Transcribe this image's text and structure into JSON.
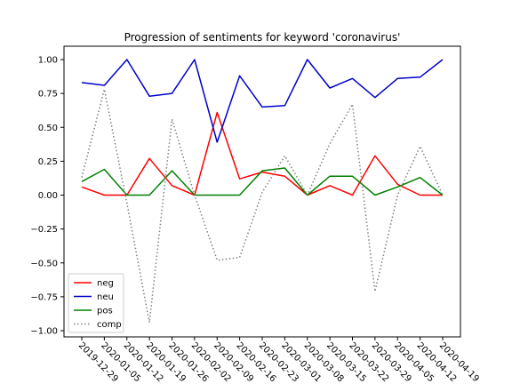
{
  "chart_data": {
    "type": "line",
    "title": "Progression of sentiments for keyword 'coronavirus'",
    "xlabel": "",
    "ylabel": "",
    "ylim": [
      -1.05,
      1.1
    ],
    "yticks": [
      "1.00",
      "0.75",
      "0.50",
      "0.25",
      "0.00",
      "−0.25",
      "−0.50",
      "−0.75",
      "−1.00"
    ],
    "ytick_values": [
      1.0,
      0.75,
      0.5,
      0.25,
      0.0,
      -0.25,
      -0.5,
      -0.75,
      -1.0
    ],
    "legend_position": "lower-left",
    "x": [
      "2019-12-29",
      "2020-01-05",
      "2020-01-12",
      "2020-01-19",
      "2020-01-26",
      "2020-02-02",
      "2020-02-09",
      "2020-02-16",
      "2020-02-23",
      "2020-03-01",
      "2020-03-08",
      "2020-03-15",
      "2020-03-22",
      "2020-03-29",
      "2020-04-05",
      "2020-04-12",
      "2020-04-19"
    ],
    "series": [
      {
        "name": "neg",
        "color": "#ff0000",
        "style": "solid",
        "values": [
          0.06,
          0.0,
          0.0,
          0.27,
          0.07,
          0.0,
          0.61,
          0.12,
          0.17,
          0.14,
          0.0,
          0.07,
          0.0,
          0.29,
          0.08,
          0.0,
          0.0
        ]
      },
      {
        "name": "neu",
        "color": "#0000cc",
        "style": "solid",
        "values": [
          0.83,
          0.81,
          1.0,
          0.73,
          0.75,
          1.0,
          0.39,
          0.88,
          0.65,
          0.66,
          1.0,
          0.79,
          0.86,
          0.72,
          0.86,
          0.87,
          1.0
        ]
      },
      {
        "name": "pos",
        "color": "#008000",
        "style": "solid",
        "values": [
          0.1,
          0.19,
          0.0,
          0.0,
          0.18,
          0.0,
          0.0,
          0.0,
          0.18,
          0.2,
          0.0,
          0.14,
          0.14,
          0.0,
          0.06,
          0.13,
          0.0
        ]
      },
      {
        "name": "comp",
        "color": "#808080",
        "style": "dotted",
        "values": [
          0.13,
          0.78,
          -0.06,
          -0.94,
          0.56,
          0.0,
          -0.48,
          -0.46,
          0.02,
          0.29,
          0.0,
          0.38,
          0.67,
          -0.71,
          0.0,
          0.36,
          0.0
        ]
      }
    ]
  }
}
